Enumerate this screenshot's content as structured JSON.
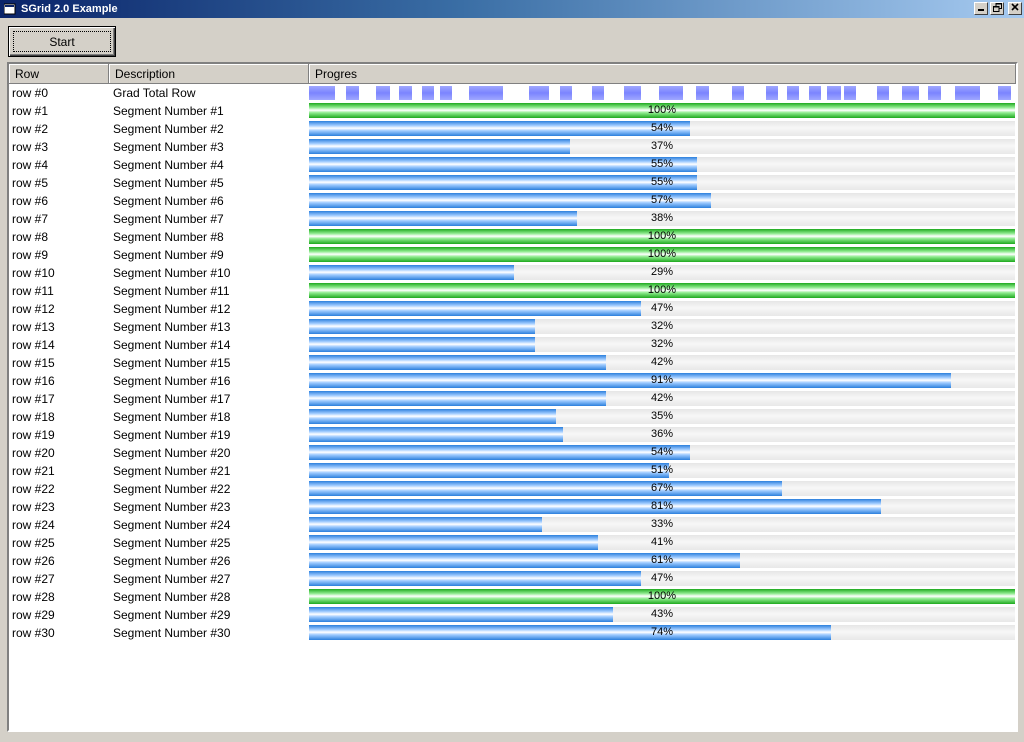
{
  "window": {
    "title": "SGrid 2.0 Example"
  },
  "toolbar": {
    "start_label": "Start"
  },
  "grid": {
    "columns": [
      "Row",
      "Description",
      "Progres"
    ],
    "total_row": {
      "row": "row #0",
      "description": "Grad Total Row"
    },
    "rows": [
      {
        "row": "row #1",
        "description": "Segment Number #1",
        "percent": 100,
        "label": "100%"
      },
      {
        "row": "row #2",
        "description": "Segment Number #2",
        "percent": 54,
        "label": "54%"
      },
      {
        "row": "row #3",
        "description": "Segment Number #3",
        "percent": 37,
        "label": "37%"
      },
      {
        "row": "row #4",
        "description": "Segment Number #4",
        "percent": 55,
        "label": "55%"
      },
      {
        "row": "row #5",
        "description": "Segment Number #5",
        "percent": 55,
        "label": "55%"
      },
      {
        "row": "row #6",
        "description": "Segment Number #6",
        "percent": 57,
        "label": "57%"
      },
      {
        "row": "row #7",
        "description": "Segment Number #7",
        "percent": 38,
        "label": "38%"
      },
      {
        "row": "row #8",
        "description": "Segment Number #8",
        "percent": 100,
        "label": "100%"
      },
      {
        "row": "row #9",
        "description": "Segment Number #9",
        "percent": 100,
        "label": "100%"
      },
      {
        "row": "row #10",
        "description": "Segment Number #10",
        "percent": 29,
        "label": "29%"
      },
      {
        "row": "row #11",
        "description": "Segment Number #11",
        "percent": 100,
        "label": "100%"
      },
      {
        "row": "row #12",
        "description": "Segment Number #12",
        "percent": 47,
        "label": "47%"
      },
      {
        "row": "row #13",
        "description": "Segment Number #13",
        "percent": 32,
        "label": "32%"
      },
      {
        "row": "row #14",
        "description": "Segment Number #14",
        "percent": 32,
        "label": "32%"
      },
      {
        "row": "row #15",
        "description": "Segment Number #15",
        "percent": 42,
        "label": "42%"
      },
      {
        "row": "row #16",
        "description": "Segment Number #16",
        "percent": 91,
        "label": "91%"
      },
      {
        "row": "row #17",
        "description": "Segment Number #17",
        "percent": 42,
        "label": "42%"
      },
      {
        "row": "row #18",
        "description": "Segment Number #18",
        "percent": 35,
        "label": "35%"
      },
      {
        "row": "row #19",
        "description": "Segment Number #19",
        "percent": 36,
        "label": "36%"
      },
      {
        "row": "row #20",
        "description": "Segment Number #20",
        "percent": 54,
        "label": "54%"
      },
      {
        "row": "row #21",
        "description": "Segment Number #21",
        "percent": 51,
        "label": "51%"
      },
      {
        "row": "row #22",
        "description": "Segment Number #22",
        "percent": 67,
        "label": "67%"
      },
      {
        "row": "row #23",
        "description": "Segment Number #23",
        "percent": 81,
        "label": "81%"
      },
      {
        "row": "row #24",
        "description": "Segment Number #24",
        "percent": 33,
        "label": "33%"
      },
      {
        "row": "row #25",
        "description": "Segment Number #25",
        "percent": 41,
        "label": "41%"
      },
      {
        "row": "row #26",
        "description": "Segment Number #26",
        "percent": 61,
        "label": "61%"
      },
      {
        "row": "row #27",
        "description": "Segment Number #27",
        "percent": 47,
        "label": "47%"
      },
      {
        "row": "row #28",
        "description": "Segment Number #28",
        "percent": 100,
        "label": "100%"
      },
      {
        "row": "row #29",
        "description": "Segment Number #29",
        "percent": 43,
        "label": "43%"
      },
      {
        "row": "row #30",
        "description": "Segment Number #30",
        "percent": 74,
        "label": "74%"
      }
    ]
  },
  "colors": {
    "progress": "#2b7fdc",
    "complete": "#1ea91e",
    "segment": "#7b84ff"
  },
  "icons": {
    "app": "app-icon",
    "minimize": "minimize-icon",
    "restore": "restore-icon",
    "close": "close-icon"
  }
}
